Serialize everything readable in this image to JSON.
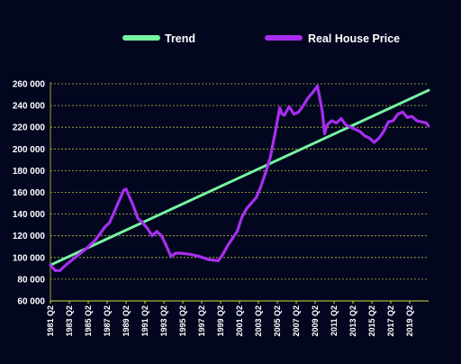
{
  "chart_data": {
    "type": "line",
    "title": "",
    "xlabel": "",
    "ylabel": "",
    "ylim": [
      60000,
      260000
    ],
    "y_ticks": [
      60000,
      80000,
      100000,
      120000,
      140000,
      160000,
      180000,
      200000,
      220000,
      240000,
      260000
    ],
    "y_tick_labels": [
      "60 000",
      "80 000",
      "100 000",
      "120 000",
      "140 000",
      "160 000",
      "180 000",
      "200 000",
      "220 000",
      "240 000",
      "260 000"
    ],
    "x_tick_labels": [
      "1981 Q2",
      "1983 Q2",
      "1985 Q2",
      "1987 Q2",
      "1989 Q2",
      "1991 Q2",
      "1993 Q2",
      "1995 Q2",
      "1997 Q2",
      "1999 Q2",
      "2001 Q2",
      "2003 Q2",
      "2005 Q2",
      "2007 Q2",
      "2009 Q2",
      "2011 Q2",
      "2013 Q2",
      "2015 Q2",
      "2017 Q2",
      "2019 Q2"
    ],
    "x_range": [
      1981.25,
      2021.25
    ],
    "grid": "horizontal-dashed",
    "legend_position": "top",
    "series": [
      {
        "name": "Trend",
        "color": "#76f5a0",
        "x": [
          1981.25,
          2021.25
        ],
        "y": [
          93000,
          254000
        ]
      },
      {
        "name": "Real House Price",
        "color": "#a82ef0",
        "x": [
          1981.25,
          1981.75,
          1982.25,
          1983.0,
          1984.0,
          1985.0,
          1986.0,
          1987.0,
          1987.5,
          1988.0,
          1988.5,
          1989.0,
          1989.25,
          1990.0,
          1990.5,
          1991.0,
          1991.5,
          1992.0,
          1992.5,
          1993.0,
          1993.5,
          1994.0,
          1994.5,
          1995.0,
          1996.0,
          1997.0,
          1998.0,
          1999.0,
          1999.5,
          2000.0,
          2001.0,
          2001.5,
          2002.0,
          2003.0,
          2003.5,
          2004.0,
          2004.5,
          2005.0,
          2005.5,
          2005.75,
          2006.0,
          2006.5,
          2007.0,
          2007.5,
          2008.0,
          2008.5,
          2009.0,
          2009.5,
          2010.0,
          2010.25,
          2010.5,
          2011.0,
          2011.5,
          2012.0,
          2012.5,
          2013.0,
          2013.5,
          2014.0,
          2014.5,
          2015.0,
          2015.5,
          2016.0,
          2016.5,
          2017.0,
          2017.5,
          2018.0,
          2018.5,
          2019.0,
          2019.5,
          2020.0,
          2020.5,
          2021.0,
          2021.25
        ],
        "y": [
          93000,
          88000,
          88000,
          94000,
          101000,
          108000,
          116000,
          128000,
          132000,
          142000,
          152000,
          162000,
          163000,
          148000,
          136000,
          132000,
          127000,
          120000,
          124000,
          120000,
          111000,
          101000,
          104000,
          104000,
          103000,
          101000,
          98000,
          97000,
          103000,
          111000,
          124000,
          137000,
          145000,
          155000,
          165000,
          178000,
          192000,
          214000,
          238000,
          232000,
          231000,
          239000,
          232000,
          234000,
          240000,
          247000,
          252000,
          258000,
          235000,
          214000,
          222000,
          226000,
          224000,
          228000,
          222000,
          220000,
          218000,
          216000,
          212000,
          210000,
          206000,
          210000,
          216000,
          225000,
          226000,
          232000,
          234000,
          229000,
          230000,
          226000,
          225000,
          224000,
          221000
        ]
      }
    ]
  }
}
